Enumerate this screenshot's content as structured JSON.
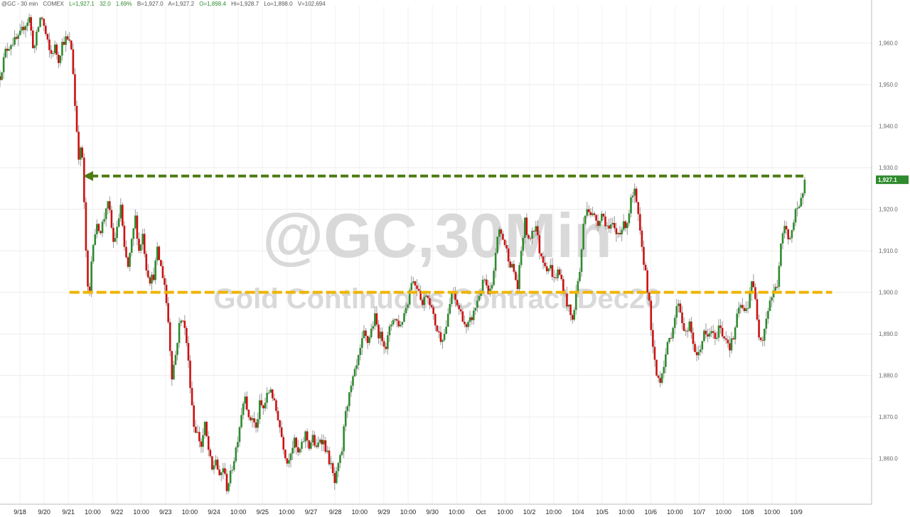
{
  "header": {
    "symbol": "@GC - 30 min",
    "exchange": "COMEX",
    "last": "L=1,927.1",
    "change": "32.0",
    "change_pct": "1.69%",
    "bid": "B=1,927.0",
    "ask": "A=1,927.2",
    "open": "O=1,898.4",
    "high": "Hi=1,928.7",
    "low": "Lo=1,898.0",
    "volume": "V=102,694"
  },
  "colors": {
    "up": "#2e8b2e",
    "down": "#cc1111",
    "wick": "#9a9a9a",
    "resistance": "#4f7d14",
    "support": "#f0b400",
    "watermark": "#d9d9d9",
    "price_badge": "#2e8b2e"
  },
  "watermark": {
    "line1": "@GC,30Min",
    "line2": "Gold Continuous Contract Dec20"
  },
  "price_badge": "1,927.1",
  "chart_data": {
    "type": "candlestick",
    "ylim": [
      1849,
      1969
    ],
    "y_ticks": [
      {
        "value": 1860,
        "label": "1,860.0"
      },
      {
        "value": 1870,
        "label": "1,870.0"
      },
      {
        "value": 1880,
        "label": "1,880.0"
      },
      {
        "value": 1890,
        "label": "1,890.0"
      },
      {
        "value": 1900,
        "label": "1,900.0"
      },
      {
        "value": 1910,
        "label": "1,910.0"
      },
      {
        "value": 1920,
        "label": "1,920.0"
      },
      {
        "value": 1930,
        "label": "1,930.0"
      },
      {
        "value": 1940,
        "label": "1,940.0"
      },
      {
        "value": 1950,
        "label": "1,950.0"
      },
      {
        "value": 1960,
        "label": "1,960.0"
      }
    ],
    "x_ticks": [
      "9/18",
      "9/20",
      "9/21",
      "10:00",
      "9/22",
      "10:00",
      "9/23",
      "10:00",
      "9/24",
      "10:00",
      "9/25",
      "10:00",
      "9/27",
      "9/28",
      "10:00",
      "9/29",
      "10:00",
      "9/30",
      "10:00",
      "Oct",
      "10:00",
      "10/2",
      "10:00",
      "10/4",
      "10/5",
      "10:00",
      "10/6",
      "10:00",
      "10/7",
      "10:00",
      "10/8",
      "10:00",
      "10/9"
    ],
    "close_path": [
      [
        0,
        1952
      ],
      [
        0.3,
        1958
      ],
      [
        0.6,
        1960
      ],
      [
        1.0,
        1961
      ],
      [
        1.3,
        1964
      ],
      [
        1.6,
        1966
      ],
      [
        1.85,
        1958
      ],
      [
        2.05,
        1963
      ],
      [
        2.25,
        1967
      ],
      [
        2.5,
        1962
      ],
      [
        2.75,
        1957
      ],
      [
        3.0,
        1959
      ],
      [
        3.2,
        1956
      ],
      [
        3.4,
        1960
      ],
      [
        3.6,
        1961
      ],
      [
        3.8,
        1960
      ],
      [
        3.95,
        1958
      ],
      [
        4.05,
        1948
      ],
      [
        4.15,
        1942
      ],
      [
        4.25,
        1936
      ],
      [
        4.35,
        1930
      ],
      [
        4.45,
        1938
      ],
      [
        4.55,
        1927
      ],
      [
        4.65,
        1915
      ],
      [
        4.75,
        1905
      ],
      [
        4.85,
        1896
      ],
      [
        4.95,
        1904
      ],
      [
        5.05,
        1911
      ],
      [
        5.15,
        1914
      ],
      [
        5.35,
        1916
      ],
      [
        5.5,
        1915
      ],
      [
        5.7,
        1918
      ],
      [
        5.85,
        1922
      ],
      [
        6.0,
        1919
      ],
      [
        6.2,
        1912
      ],
      [
        6.4,
        1915
      ],
      [
        6.6,
        1921
      ],
      [
        6.8,
        1910
      ],
      [
        7.0,
        1906
      ],
      [
        7.2,
        1912
      ],
      [
        7.4,
        1918
      ],
      [
        7.6,
        1910
      ],
      [
        7.8,
        1914
      ],
      [
        8.0,
        1906
      ],
      [
        8.2,
        1903
      ],
      [
        8.4,
        1904
      ],
      [
        8.6,
        1910
      ],
      [
        8.8,
        1906
      ],
      [
        9.0,
        1902
      ],
      [
        9.2,
        1893
      ],
      [
        9.4,
        1880
      ],
      [
        9.6,
        1885
      ],
      [
        9.8,
        1892
      ],
      [
        10.0,
        1894
      ],
      [
        10.2,
        1888
      ],
      [
        10.4,
        1878
      ],
      [
        10.6,
        1868
      ],
      [
        10.8,
        1866
      ],
      [
        11.0,
        1863
      ],
      [
        11.2,
        1868
      ],
      [
        11.4,
        1862
      ],
      [
        11.6,
        1857
      ],
      [
        11.8,
        1860
      ],
      [
        12.0,
        1855
      ],
      [
        12.2,
        1858
      ],
      [
        12.4,
        1853
      ],
      [
        12.6,
        1856
      ],
      [
        12.8,
        1860
      ],
      [
        13.0,
        1865
      ],
      [
        13.2,
        1871
      ],
      [
        13.4,
        1876
      ],
      [
        13.6,
        1869
      ],
      [
        13.8,
        1870
      ],
      [
        14.0,
        1867
      ],
      [
        14.2,
        1873
      ],
      [
        14.4,
        1872
      ],
      [
        14.6,
        1875
      ],
      [
        14.8,
        1877
      ],
      [
        15.0,
        1873
      ],
      [
        15.2,
        1870
      ],
      [
        15.5,
        1863
      ],
      [
        15.7,
        1859
      ],
      [
        15.9,
        1862
      ],
      [
        16.1,
        1864
      ],
      [
        16.3,
        1861
      ],
      [
        16.5,
        1863
      ],
      [
        16.7,
        1866
      ],
      [
        16.9,
        1863
      ],
      [
        17.1,
        1865
      ],
      [
        17.3,
        1862
      ],
      [
        17.5,
        1865
      ],
      [
        17.7,
        1864
      ],
      [
        17.9,
        1861
      ],
      [
        18.1,
        1858
      ],
      [
        18.3,
        1854
      ],
      [
        18.5,
        1858
      ],
      [
        18.7,
        1862
      ],
      [
        18.9,
        1872
      ],
      [
        19.1,
        1875
      ],
      [
        19.3,
        1879
      ],
      [
        19.5,
        1882
      ],
      [
        19.7,
        1886
      ],
      [
        19.9,
        1890
      ],
      [
        20.1,
        1888
      ],
      [
        20.3,
        1891
      ],
      [
        20.5,
        1894
      ],
      [
        20.7,
        1890
      ],
      [
        20.9,
        1889
      ],
      [
        21.1,
        1887
      ],
      [
        21.3,
        1891
      ],
      [
        21.5,
        1894
      ],
      [
        21.7,
        1893
      ],
      [
        21.9,
        1892
      ],
      [
        22.1,
        1895
      ],
      [
        22.3,
        1898
      ],
      [
        22.5,
        1903
      ],
      [
        22.7,
        1902
      ],
      [
        22.9,
        1901
      ],
      [
        23.1,
        1897
      ],
      [
        23.3,
        1900
      ],
      [
        23.5,
        1898
      ],
      [
        23.7,
        1894
      ],
      [
        23.9,
        1891
      ],
      [
        24.1,
        1889
      ],
      [
        24.3,
        1890
      ],
      [
        24.5,
        1894
      ],
      [
        24.7,
        1900
      ],
      [
        24.9,
        1898
      ],
      [
        25.1,
        1896
      ],
      [
        25.3,
        1894
      ],
      [
        25.5,
        1891
      ],
      [
        25.7,
        1893
      ],
      [
        25.9,
        1895
      ],
      [
        26.1,
        1898
      ],
      [
        26.3,
        1901
      ],
      [
        26.5,
        1903
      ],
      [
        26.7,
        1899
      ],
      [
        26.9,
        1901
      ],
      [
        27.1,
        1910
      ],
      [
        27.3,
        1915
      ],
      [
        27.5,
        1913
      ],
      [
        27.7,
        1910
      ],
      [
        27.9,
        1907
      ],
      [
        28.1,
        1905
      ],
      [
        28.3,
        1901
      ],
      [
        28.5,
        1910
      ],
      [
        28.7,
        1917
      ],
      [
        28.9,
        1912
      ],
      [
        29.1,
        1915
      ],
      [
        29.3,
        1916
      ],
      [
        29.5,
        1910
      ],
      [
        29.7,
        1908
      ],
      [
        29.9,
        1906
      ],
      [
        30.1,
        1906
      ],
      [
        30.3,
        1903
      ],
      [
        30.5,
        1905
      ],
      [
        30.7,
        1903
      ],
      [
        30.9,
        1899
      ],
      [
        31.1,
        1896
      ],
      [
        31.3,
        1893
      ],
      [
        31.5,
        1900
      ],
      [
        31.7,
        1905
      ],
      [
        31.9,
        1916
      ],
      [
        32.1,
        1921
      ],
      [
        32.3,
        1919
      ],
      [
        32.5,
        1918
      ],
      [
        32.7,
        1917
      ],
      [
        32.9,
        1919
      ],
      [
        33.1,
        1917
      ],
      [
        33.3,
        1915
      ],
      [
        33.5,
        1916
      ],
      [
        33.7,
        1914
      ],
      [
        33.9,
        1915
      ],
      [
        34.1,
        1916
      ],
      [
        34.3,
        1917
      ],
      [
        34.5,
        1922
      ],
      [
        34.7,
        1924
      ],
      [
        34.9,
        1918
      ],
      [
        35.1,
        1910
      ],
      [
        35.3,
        1905
      ],
      [
        35.5,
        1897
      ],
      [
        35.7,
        1886
      ],
      [
        35.9,
        1880
      ],
      [
        36.1,
        1879
      ],
      [
        36.3,
        1883
      ],
      [
        36.5,
        1887
      ],
      [
        36.7,
        1890
      ],
      [
        36.9,
        1894
      ],
      [
        37.1,
        1898
      ],
      [
        37.3,
        1893
      ],
      [
        37.5,
        1890
      ],
      [
        37.7,
        1892
      ],
      [
        37.9,
        1888
      ],
      [
        38.1,
        1884
      ],
      [
        38.3,
        1887
      ],
      [
        38.5,
        1890
      ],
      [
        38.7,
        1889
      ],
      [
        38.9,
        1891
      ],
      [
        39.1,
        1888
      ],
      [
        39.3,
        1892
      ],
      [
        39.5,
        1890
      ],
      [
        39.7,
        1889
      ],
      [
        39.9,
        1887
      ],
      [
        40.1,
        1889
      ],
      [
        40.3,
        1894
      ],
      [
        40.5,
        1897
      ],
      [
        40.7,
        1895
      ],
      [
        40.9,
        1897
      ],
      [
        41.1,
        1903
      ],
      [
        41.3,
        1898
      ],
      [
        41.5,
        1890
      ],
      [
        41.7,
        1889
      ],
      [
        41.9,
        1894
      ],
      [
        42.1,
        1898
      ],
      [
        42.3,
        1900
      ],
      [
        42.5,
        1902
      ],
      [
        42.7,
        1911
      ],
      [
        42.9,
        1916
      ],
      [
        43.1,
        1913
      ],
      [
        43.3,
        1915
      ],
      [
        43.5,
        1919
      ],
      [
        43.7,
        1920
      ],
      [
        43.8,
        1922
      ],
      [
        44.0,
        1927.1
      ]
    ],
    "x_max": 44.2,
    "resistance_line": {
      "value": 1928,
      "from_x": 4.55,
      "to_x": 44.0
    },
    "support_line": {
      "value": 1900,
      "from_x": 3.8,
      "to_x": 45.5
    }
  }
}
